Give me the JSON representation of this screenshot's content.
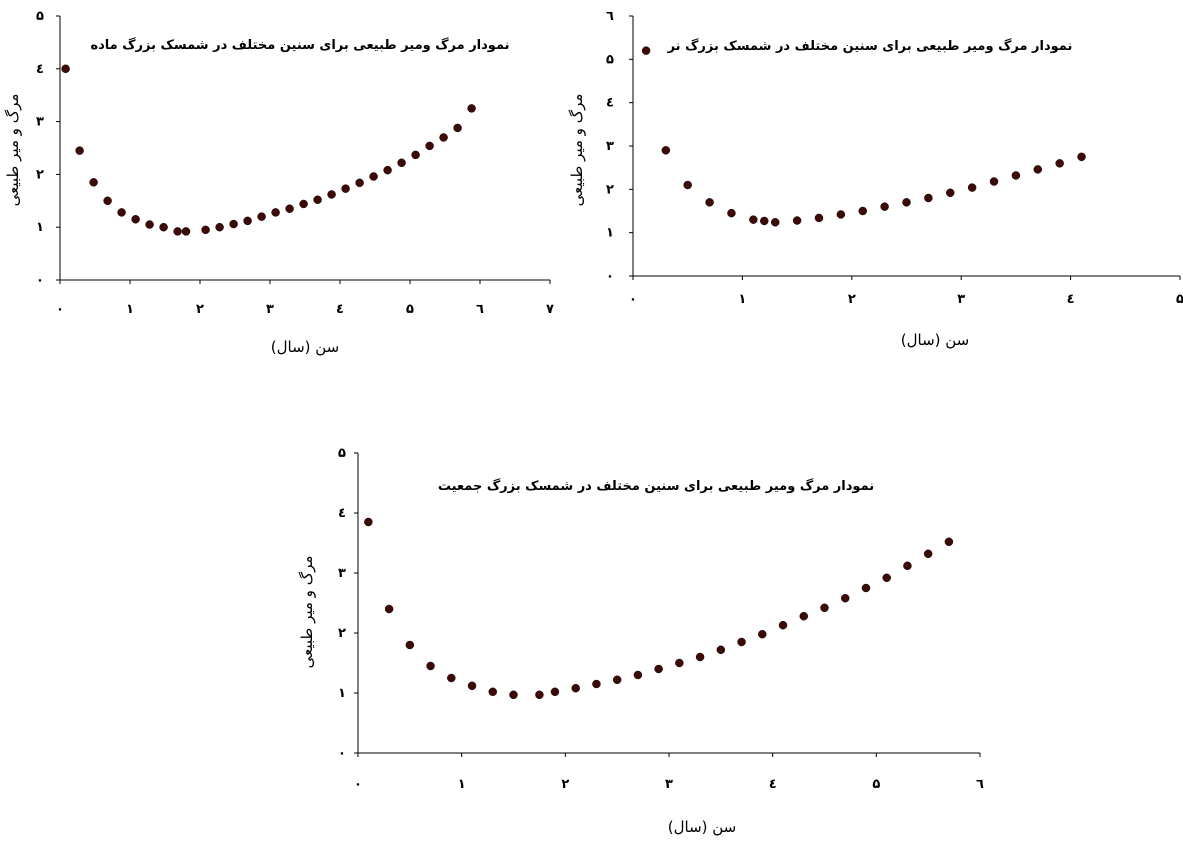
{
  "chart_data": [
    {
      "type": "scatter",
      "title": "نمودار مرگ ومیر طبیعی برای سنین مختلف در شمسک بزرگ ماده",
      "xlabel": "سن (سال)",
      "ylabel": "مرگ و میر طبیعی",
      "xlim": [
        0,
        7
      ],
      "ylim": [
        0,
        5
      ],
      "x_ticks": [
        0,
        1,
        2,
        3,
        4,
        5,
        6,
        7
      ],
      "y_ticks": [
        0,
        1,
        2,
        3,
        4,
        5
      ],
      "x_tick_labels": [
        "۰",
        "۱",
        "۲",
        "۳",
        "٤",
        "۵",
        "٦",
        "۷"
      ],
      "y_tick_labels": [
        "۰",
        "۱",
        "۲",
        "۳",
        "٤",
        "۵"
      ],
      "grid": false,
      "color": "#3b0a06",
      "x": [
        0.08,
        0.28,
        0.48,
        0.68,
        0.88,
        1.08,
        1.28,
        1.48,
        1.68,
        1.8,
        2.08,
        2.28,
        2.48,
        2.68,
        2.88,
        3.08,
        3.28,
        3.48,
        3.68,
        3.88,
        4.08,
        4.28,
        4.48,
        4.68,
        4.88,
        5.08,
        5.28,
        5.48,
        5.68,
        5.88
      ],
      "y": [
        4.0,
        2.45,
        1.85,
        1.5,
        1.28,
        1.15,
        1.05,
        1.0,
        0.92,
        0.92,
        0.95,
        1.0,
        1.06,
        1.12,
        1.2,
        1.28,
        1.35,
        1.44,
        1.52,
        1.62,
        1.73,
        1.84,
        1.96,
        2.08,
        2.22,
        2.37,
        2.54,
        2.7,
        2.88,
        3.25
      ]
    },
    {
      "type": "scatter",
      "title": "نمودار مرگ ومیر طبیعی برای سنین مختلف در شمسک بزرگ نر",
      "xlabel": "سن (سال)",
      "ylabel": "مرگ و میر طبیعی",
      "xlim": [
        0,
        5
      ],
      "ylim": [
        0,
        6
      ],
      "x_ticks": [
        0,
        1,
        2,
        3,
        4,
        5
      ],
      "y_ticks": [
        0,
        1,
        2,
        3,
        4,
        5,
        6
      ],
      "x_tick_labels": [
        "۰",
        "۱",
        "۲",
        "۳",
        "٤",
        "۵"
      ],
      "y_tick_labels": [
        "۰",
        "۱",
        "۲",
        "۳",
        "٤",
        "۵",
        "٦"
      ],
      "grid": false,
      "color": "#3b0a06",
      "x": [
        0.12,
        0.3,
        0.5,
        0.7,
        0.9,
        1.1,
        1.2,
        1.3,
        1.5,
        1.7,
        1.9,
        2.1,
        2.3,
        2.5,
        2.7,
        2.9,
        3.1,
        3.3,
        3.5,
        3.7,
        3.9,
        4.1
      ],
      "y": [
        5.2,
        2.9,
        2.1,
        1.7,
        1.45,
        1.3,
        1.27,
        1.24,
        1.28,
        1.34,
        1.42,
        1.5,
        1.6,
        1.7,
        1.8,
        1.92,
        2.04,
        2.18,
        2.32,
        2.46,
        2.6,
        2.75
      ]
    },
    {
      "type": "scatter",
      "title": "نمودار مرگ ومیر طبیعی برای سنین مختلف در شمسک بزرگ جمعیت",
      "xlabel": "سن (سال)",
      "ylabel": "مرگ و میر طبیعی",
      "xlim": [
        0,
        6
      ],
      "ylim": [
        0,
        5
      ],
      "x_ticks": [
        0,
        1,
        2,
        3,
        4,
        5,
        6
      ],
      "y_ticks": [
        0,
        1,
        2,
        3,
        4,
        5
      ],
      "x_tick_labels": [
        "۰",
        "۱",
        "۲",
        "۳",
        "٤",
        "۵",
        "٦"
      ],
      "y_tick_labels": [
        "۰",
        "۱",
        "۲",
        "۳",
        "٤",
        "۵"
      ],
      "grid": false,
      "color": "#3b0a06",
      "x": [
        0.1,
        0.3,
        0.5,
        0.7,
        0.9,
        1.1,
        1.3,
        1.5,
        1.75,
        1.9,
        2.1,
        2.3,
        2.5,
        2.7,
        2.9,
        3.1,
        3.3,
        3.5,
        3.7,
        3.9,
        4.1,
        4.3,
        4.5,
        4.7,
        4.9,
        5.1,
        5.3,
        5.5,
        5.7
      ],
      "y": [
        3.85,
        2.4,
        1.8,
        1.45,
        1.25,
        1.12,
        1.02,
        0.97,
        0.97,
        1.02,
        1.08,
        1.15,
        1.22,
        1.3,
        1.4,
        1.5,
        1.6,
        1.72,
        1.85,
        1.98,
        2.13,
        2.28,
        2.42,
        2.58,
        2.75,
        2.92,
        3.12,
        3.32,
        3.52
      ]
    }
  ]
}
